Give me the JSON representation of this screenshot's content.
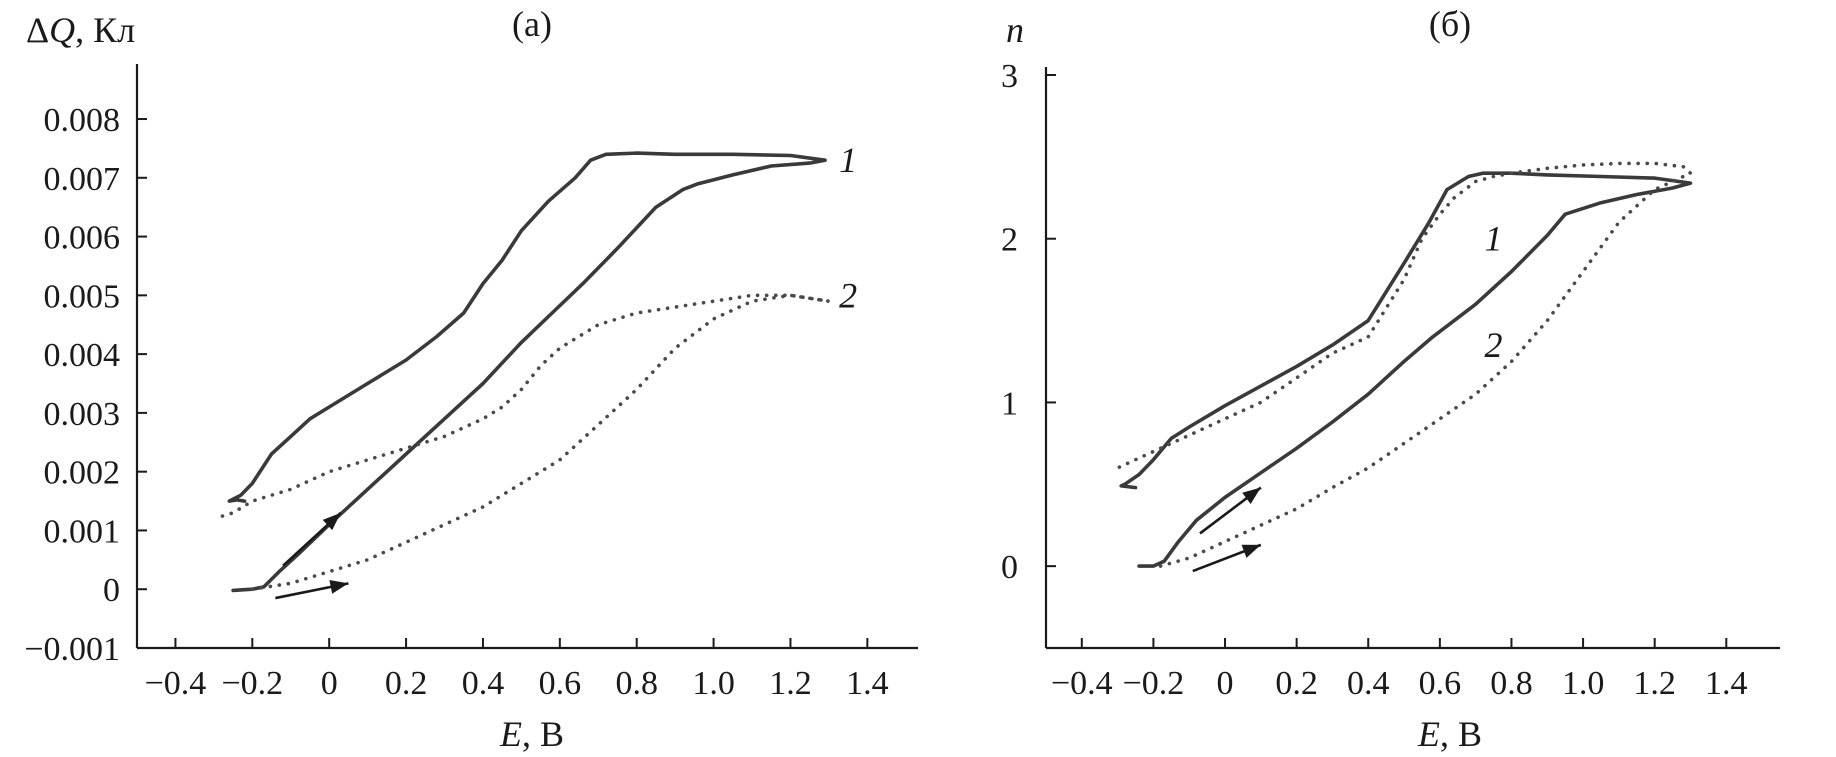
{
  "chart_data": [
    {
      "type": "line",
      "panel_label": "(a)",
      "title": "",
      "xlabel": "E, В",
      "ylabel": "ΔQ, Кл",
      "xlim": [
        -0.5,
        1.55
      ],
      "ylim": [
        -0.001,
        0.0088
      ],
      "x_ticks": [
        -0.4,
        -0.2,
        0,
        0.2,
        0.4,
        0.6,
        0.8,
        1.0,
        1.2,
        1.4
      ],
      "x_tick_labels": [
        "−0.4",
        "−0.2",
        "0",
        "0.2",
        "0.4",
        "0.6",
        "0.8",
        "1.0",
        "1.2",
        "1.4"
      ],
      "y_ticks": [
        -0.001,
        0,
        0.001,
        0.002,
        0.003,
        0.004,
        0.005,
        0.006,
        0.007,
        0.008
      ],
      "y_tick_labels": [
        "−0.001",
        "0",
        "0.001",
        "0.002",
        "0.003",
        "0.004",
        "0.005",
        "0.006",
        "0.007",
        "0.008"
      ],
      "grid": false,
      "legend": "none",
      "series": [
        {
          "name": "1",
          "style": "solid",
          "x": [
            -0.25,
            -0.2,
            -0.17,
            -0.13,
            -0.08,
            0,
            0.1,
            0.2,
            0.3,
            0.4,
            0.5,
            0.58,
            0.66,
            0.75,
            0.85,
            0.92,
            0.96,
            1.05,
            1.15,
            1.25,
            1.29,
            1.2,
            1.05,
            0.9,
            0.8,
            0.72,
            0.68,
            0.64,
            0.57,
            0.5,
            0.45,
            0.4,
            0.35,
            0.28,
            0.2,
            0.1,
            0,
            -0.05,
            -0.1,
            -0.15,
            -0.2,
            -0.23,
            -0.26,
            -0.24,
            -0.22
          ],
          "y": [
            -2e-05,
            0,
            4e-05,
            0.0003,
            0.0006,
            0.0011,
            0.0017,
            0.0023,
            0.0029,
            0.0035,
            0.0042,
            0.0047,
            0.0052,
            0.0058,
            0.0065,
            0.0068,
            0.0069,
            0.00705,
            0.0072,
            0.00725,
            0.0073,
            0.00738,
            0.0074,
            0.0074,
            0.00742,
            0.0074,
            0.0073,
            0.007,
            0.0066,
            0.0061,
            0.0056,
            0.0052,
            0.0047,
            0.0043,
            0.0039,
            0.0035,
            0.0031,
            0.0029,
            0.0026,
            0.0023,
            0.0018,
            0.0016,
            0.0015,
            0.00152,
            0.0015
          ]
        },
        {
          "name": "2",
          "style": "dotted",
          "x": [
            -0.2,
            -0.1,
            0,
            0.1,
            0.2,
            0.3,
            0.4,
            0.5,
            0.6,
            0.7,
            0.8,
            0.9,
            1.0,
            1.1,
            1.2,
            1.3,
            1.2,
            1.1,
            1.0,
            0.9,
            0.8,
            0.7,
            0.6,
            0.55,
            0.5,
            0.45,
            0.4,
            0.3,
            0.2,
            0.1,
            0,
            -0.1,
            -0.2,
            -0.25,
            -0.3
          ],
          "y": [
            0,
            0.0001,
            0.0003,
            0.0005,
            0.0008,
            0.0011,
            0.0014,
            0.0018,
            0.0022,
            0.0028,
            0.0034,
            0.0041,
            0.0046,
            0.0049,
            0.005,
            0.0049,
            0.005,
            0.005,
            0.0049,
            0.0048,
            0.0047,
            0.0045,
            0.0041,
            0.0038,
            0.0034,
            0.0031,
            0.0029,
            0.0026,
            0.0024,
            0.0022,
            0.002,
            0.0017,
            0.0015,
            0.0013,
            0.0012
          ]
        }
      ],
      "curve_labels": [
        {
          "text": "1",
          "x": 1.35,
          "y": 0.0073
        },
        {
          "text": "2",
          "x": 1.35,
          "y": 0.005
        }
      ],
      "arrows": [
        {
          "from": [
            -0.12,
            0.0004
          ],
          "to": [
            0.03,
            0.0013
          ]
        },
        {
          "from": [
            -0.14,
            -0.00015
          ],
          "to": [
            0.05,
            0.0001
          ]
        }
      ]
    },
    {
      "type": "line",
      "panel_label": "(б)",
      "title": "",
      "xlabel": "E, В",
      "ylabel": "n",
      "xlim": [
        -0.5,
        1.55
      ],
      "ylim": [
        -0.5,
        3.0
      ],
      "x_ticks": [
        -0.4,
        -0.2,
        0,
        0.2,
        0.4,
        0.6,
        0.8,
        1.0,
        1.2,
        1.4
      ],
      "x_tick_labels": [
        "−0.4",
        "−0.2",
        "0",
        "0.2",
        "0.4",
        "0.6",
        "0.8",
        "1.0",
        "1.2",
        "1.4"
      ],
      "y_ticks": [
        0,
        1,
        2,
        3
      ],
      "y_tick_labels": [
        "0",
        "1",
        "2",
        "3"
      ],
      "grid": false,
      "legend": "none",
      "series": [
        {
          "name": "1",
          "style": "solid",
          "x": [
            -0.24,
            -0.2,
            -0.17,
            -0.13,
            -0.08,
            0,
            0.1,
            0.2,
            0.3,
            0.4,
            0.5,
            0.58,
            0.7,
            0.8,
            0.9,
            0.95,
            1.05,
            1.15,
            1.25,
            1.3,
            1.2,
            1.05,
            0.9,
            0.8,
            0.72,
            0.68,
            0.62,
            0.57,
            0.5,
            0.4,
            0.3,
            0.2,
            0.1,
            0,
            -0.1,
            -0.15,
            -0.2,
            -0.24,
            -0.28,
            -0.29,
            -0.25
          ],
          "y": [
            0,
            0,
            0.03,
            0.15,
            0.28,
            0.42,
            0.57,
            0.72,
            0.88,
            1.05,
            1.25,
            1.4,
            1.6,
            1.8,
            2.02,
            2.15,
            2.22,
            2.27,
            2.31,
            2.34,
            2.37,
            2.38,
            2.39,
            2.4,
            2.4,
            2.38,
            2.3,
            2.1,
            1.85,
            1.5,
            1.35,
            1.22,
            1.1,
            0.98,
            0.85,
            0.78,
            0.65,
            0.56,
            0.5,
            0.49,
            0.48
          ]
        },
        {
          "name": "2",
          "style": "dotted",
          "x": [
            -0.18,
            -0.1,
            0,
            0.1,
            0.2,
            0.3,
            0.4,
            0.5,
            0.6,
            0.7,
            0.8,
            0.9,
            0.95,
            1.0,
            1.1,
            1.2,
            1.3,
            1.28,
            1.2,
            1.1,
            1.0,
            0.9,
            0.8,
            0.75,
            0.7,
            0.64,
            0.6,
            0.55,
            0.5,
            0.4,
            0.3,
            0.2,
            0.1,
            0,
            -0.1,
            -0.2,
            -0.25,
            -0.28,
            -0.3
          ],
          "y": [
            0,
            0.05,
            0.15,
            0.25,
            0.35,
            0.48,
            0.6,
            0.75,
            0.9,
            1.05,
            1.25,
            1.5,
            1.65,
            1.8,
            2.1,
            2.3,
            2.4,
            2.44,
            2.46,
            2.46,
            2.45,
            2.43,
            2.4,
            2.38,
            2.35,
            2.25,
            2.15,
            2.0,
            1.75,
            1.4,
            1.3,
            1.15,
            1.0,
            0.9,
            0.8,
            0.7,
            0.65,
            0.62,
            0.6
          ]
        }
      ],
      "curve_labels": [
        {
          "text": "1",
          "x": 0.75,
          "y": 2.0
        },
        {
          "text": "2",
          "x": 0.75,
          "y": 1.35
        }
      ],
      "arrows": [
        {
          "from": [
            -0.07,
            0.2
          ],
          "to": [
            0.1,
            0.48
          ]
        },
        {
          "from": [
            -0.09,
            -0.03
          ],
          "to": [
            0.1,
            0.13
          ]
        }
      ]
    }
  ]
}
